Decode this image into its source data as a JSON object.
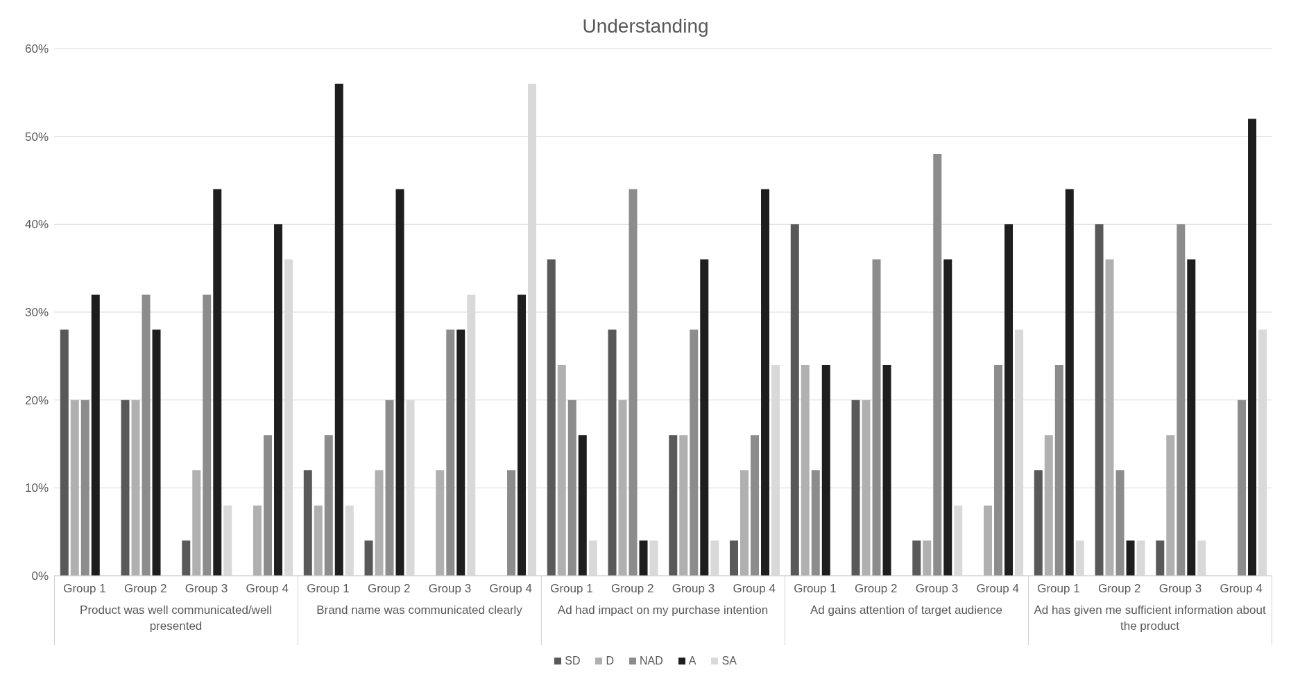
{
  "chart_data": {
    "type": "bar",
    "title": "Understanding",
    "categories": [
      "Group 1",
      "Group 2",
      "Group 3",
      "Group 4",
      "Group 1",
      "Group 2",
      "Group 3",
      "Group 4",
      "Group 1",
      "Group 2",
      "Group 3",
      "Group 4",
      "Group 1",
      "Group 2",
      "Group 3",
      "Group 4",
      "Group 1",
      "Group 2",
      "Group 3",
      "Group 4"
    ],
    "annotations": [
      "Product was well communicated/well presented",
      "Brand name was communicated clearly",
      "Ad had impact on my purchase intention",
      "Ad gains attention of target audience",
      "Ad has given me sufficient information about the product"
    ],
    "series": [
      {
        "name": "SD",
        "color": "#595959",
        "values": [
          28,
          20,
          4,
          null,
          12,
          4,
          null,
          null,
          36,
          28,
          16,
          4,
          40,
          20,
          4,
          null,
          12,
          40,
          4,
          null
        ]
      },
      {
        "name": "D",
        "color": "#b0b0b0",
        "values": [
          20,
          20,
          12,
          8,
          8,
          12,
          12,
          null,
          24,
          20,
          16,
          12,
          24,
          20,
          4,
          8,
          16,
          36,
          16,
          null
        ]
      },
      {
        "name": "NAD",
        "color": "#8c8c8c",
        "values": [
          20,
          32,
          32,
          16,
          16,
          20,
          28,
          12,
          20,
          44,
          28,
          16,
          12,
          36,
          48,
          24,
          24,
          12,
          40,
          20
        ]
      },
      {
        "name": "A",
        "color": "#1e1e1e",
        "values": [
          32,
          28,
          44,
          40,
          56,
          44,
          28,
          32,
          16,
          4,
          36,
          44,
          24,
          24,
          36,
          40,
          44,
          4,
          36,
          52
        ]
      },
      {
        "name": "SA",
        "color": "#d9d9d9",
        "values": [
          null,
          null,
          8,
          36,
          8,
          20,
          32,
          56,
          4,
          4,
          4,
          24,
          null,
          null,
          8,
          28,
          4,
          4,
          4,
          28
        ]
      }
    ],
    "ylim": [
      0,
      60
    ],
    "yticks": [
      {
        "value": 0,
        "label": "0%"
      },
      {
        "value": 10,
        "label": "10%"
      },
      {
        "value": 20,
        "label": "20%"
      },
      {
        "value": 30,
        "label": "30%"
      },
      {
        "value": 40,
        "label": "40%"
      },
      {
        "value": 50,
        "label": "50%"
      },
      {
        "value": 60,
        "label": "60%"
      }
    ],
    "grid": "y",
    "legend": "bottom"
  }
}
